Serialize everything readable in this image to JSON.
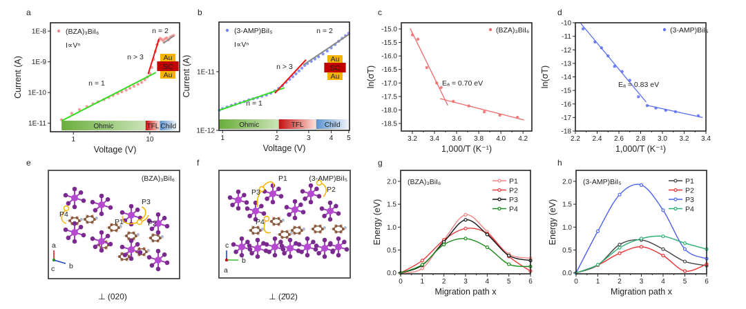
{
  "panel_labels": {
    "a": "a",
    "b": "b",
    "c": "c",
    "d": "d",
    "e": "e",
    "f": "f",
    "g": "g",
    "h": "h"
  },
  "structures": [
    {
      "panel": "e",
      "compound": "(BZA)₃BiI₆",
      "paths": [
        "P1",
        "P2",
        "P3",
        "P4"
      ],
      "axes": [
        "a",
        "b",
        "c"
      ],
      "caption": "⊥ (020)"
    },
    {
      "panel": "f",
      "compound": "(3-AMP)BiI₅",
      "paths": [
        "P1",
        "P2",
        "P3",
        "P4"
      ],
      "axes": [
        "c",
        "b",
        "a"
      ],
      "caption": "⊥ (2̄02)"
    }
  ],
  "chart_data": [
    {
      "panel": "a",
      "type": "scatter",
      "xscale": "log",
      "yscale": "log",
      "xlim": [
        0.5,
        24.5
      ],
      "ylim": [
        5.3e-12,
        1.87e-08
      ],
      "xlabel": "Voltage (V)",
      "ylabel": "Current (A)",
      "xticks": [
        1,
        10
      ],
      "xticklabels": [
        "1",
        "10"
      ],
      "yticks": [
        1e-11,
        1e-10,
        1e-09,
        1e-08
      ],
      "yticklabels": [
        "1E-11",
        "1E-10",
        "1E-9",
        "1E-8"
      ],
      "legend_position": "top-left",
      "formula": "I∝Vⁿ",
      "series": [
        {
          "name": "(BZA)₃BiI₆",
          "color": "#f28b8b",
          "x": [
            0.7,
            0.95,
            1.2,
            1.5,
            1.8,
            2.1,
            2.5,
            2.9,
            3.3,
            3.8,
            4.3,
            4.9,
            5.5,
            6.2,
            7,
            7.8,
            8.6,
            9.3,
            10,
            10.6,
            11.2,
            11.8,
            12.4,
            13,
            13.6,
            14.3,
            15,
            15.8,
            16.6,
            17.5,
            18.5,
            19.5,
            20.5
          ],
          "y": [
            1.3e-11,
            2.1e-11,
            2.8e-11,
            3.5e-11,
            4.3e-11,
            5e-11,
            5.9e-11,
            6.9e-11,
            8e-11,
            9.3e-11,
            1.06e-10,
            1.2e-10,
            1.38e-10,
            1.6e-10,
            1.85e-10,
            2.15e-10,
            2.6e-10,
            3.2e-10,
            4.2e-10,
            6.5e-10,
            1.2e-09,
            2.2e-09,
            3.6e-09,
            4.8e-09,
            5.8e-09,
            5.4e-09,
            4.8e-09,
            5.6e-09,
            6e-09,
            5.2e-09,
            6.3e-09,
            6.8e-09,
            7.2e-09
          ]
        }
      ],
      "fits": [
        {
          "label": "n = 1",
          "color": "#33dd22",
          "x": [
            0.7,
            12
          ],
          "y": [
            1.2e-11,
            4.5e-10
          ]
        },
        {
          "label": "n > 3",
          "color": "#ee1111",
          "x": [
            9.5,
            13.2
          ],
          "y": [
            4e-10,
            5.6e-09
          ]
        },
        {
          "label": "n = 2",
          "color": "#8a8a8a",
          "x": [
            15,
            20.5
          ],
          "y": [
            4e-09,
            7e-09
          ]
        }
      ],
      "regions": [
        {
          "label": "Ohmic",
          "from": 0.7,
          "to": 8.8,
          "color": "#6aae3c"
        },
        {
          "label": "TFL",
          "from": 8.8,
          "to": 13.5,
          "color": "#c41010"
        },
        {
          "label": "Child",
          "from": 13.5,
          "to": 22,
          "color": "#5b93cf"
        }
      ],
      "inset": {
        "layers": [
          "Au",
          "SC",
          "Au"
        ]
      }
    },
    {
      "panel": "b",
      "type": "scatter",
      "xscale": "log",
      "yscale": "log",
      "xlim": [
        0.955,
        5.05
      ],
      "ylim": [
        1e-12,
        7e-11
      ],
      "xlabel": "Voltage (V)",
      "ylabel": "Current (A)",
      "xticks": [
        1,
        2,
        3,
        4,
        5
      ],
      "xticklabels": [
        "1",
        "2",
        "3",
        "4",
        "5"
      ],
      "yticks": [
        1e-12,
        1e-11
      ],
      "yticklabels": [
        "1E-12",
        "1E-11"
      ],
      "legend_position": "top-left",
      "formula": "I∝Vⁿ",
      "series": [
        {
          "name": "(3-AMP)BiI₅",
          "color": "#7283f2",
          "x": [
            0.96,
            1.0,
            1.06,
            1.12,
            1.18,
            1.25,
            1.32,
            1.4,
            1.48,
            1.56,
            1.65,
            1.75,
            1.85,
            1.95,
            2.05,
            2.15,
            2.25,
            2.35,
            2.45,
            2.55,
            2.65,
            2.75,
            2.85,
            2.95,
            3.1,
            3.25,
            3.4,
            3.6,
            3.8,
            4.0,
            4.2,
            4.4,
            4.6,
            4.8,
            5.0
          ],
          "y": [
            2.2e-12,
            2.35e-12,
            2.5e-12,
            2.65e-12,
            2.8e-12,
            2.95e-12,
            3.1e-12,
            3.3e-12,
            3.45e-12,
            3.6e-12,
            3.8e-12,
            4e-12,
            4.3e-12,
            4.7e-12,
            5.2e-12,
            5.8e-12,
            6.6e-12,
            7.4e-12,
            8.2e-12,
            9.2e-12,
            1.03e-11,
            1.15e-11,
            1.28e-11,
            1.38e-11,
            1.5e-11,
            1.65e-11,
            1.8e-11,
            2e-11,
            2.25e-11,
            2.55e-11,
            2.9e-11,
            3.3e-11,
            3.7e-11,
            4.1e-11,
            4.5e-11
          ]
        }
      ],
      "fits": [
        {
          "label": "n = 1",
          "color": "#33dd22",
          "x": [
            0.96,
            2.2
          ],
          "y": [
            2.2e-12,
            5.3e-12
          ]
        },
        {
          "label": "n > 3",
          "color": "#ee1111",
          "x": [
            1.95,
            2.9
          ],
          "y": [
            4.3e-12,
            1.6e-11
          ]
        },
        {
          "label": "n = 2",
          "color": "#8a8a8a",
          "x": [
            2.8,
            5.0
          ],
          "y": [
            1.3e-11,
            4.3e-11
          ]
        }
      ],
      "regions": [
        {
          "label": "Ohmic",
          "from": 0.96,
          "to": 2.05,
          "color": "#6aae3c"
        },
        {
          "label": "TFL",
          "from": 2.05,
          "to": 3.3,
          "color": "#c41010"
        },
        {
          "label": "Child",
          "from": 3.3,
          "to": 5.0,
          "color": "#5b93cf"
        }
      ],
      "inset": {
        "layers": [
          "Au",
          "SC",
          "Au"
        ]
      }
    },
    {
      "panel": "c",
      "type": "scatter",
      "xscale": "linear",
      "yscale": "linear",
      "xlim": [
        3.1,
        4.28
      ],
      "ylim": [
        -18.78,
        -14.77
      ],
      "xlabel": "1,000/T (K⁻¹)",
      "ylabel": "ln(σT)",
      "xticks": [
        3.2,
        3.4,
        3.6,
        3.8,
        4.0,
        4.2
      ],
      "xticklabels": [
        "3.2",
        "3.4",
        "3.6",
        "3.8",
        "4.0",
        "4.2"
      ],
      "yticks": [
        -15,
        -15.5,
        -16,
        -16.5,
        -17,
        -17.5,
        -18,
        -18.5
      ],
      "yticklabels": [
        "-15.0",
        "-15.5",
        "-16.0",
        "-16.5",
        "-17.0",
        "-17.5",
        "-18.0",
        "-18.5"
      ],
      "legend_position": "top-right",
      "annotation": "Eₐ = 0.70 eV",
      "series": [
        {
          "name": "(BZA)₃BiI₆",
          "color": "#f06a6a",
          "x": [
            3.2,
            3.25,
            3.33,
            3.42,
            3.46,
            3.57,
            3.71,
            3.85,
            3.99,
            4.15
          ],
          "y": [
            -15.22,
            -15.38,
            -16.43,
            -17.0,
            -17.17,
            -17.68,
            -17.85,
            -18.07,
            -18.19,
            -18.27
          ]
        }
      ],
      "fits": [
        {
          "color": "#f06a6a",
          "x": [
            3.18,
            3.52
          ],
          "y": [
            -14.98,
            -17.83
          ]
        },
        {
          "color": "#f06a6a",
          "x": [
            3.45,
            4.21
          ],
          "y": [
            -17.58,
            -18.37
          ]
        }
      ]
    },
    {
      "panel": "d",
      "type": "scatter",
      "xscale": "linear",
      "yscale": "linear",
      "xlim": [
        2.2,
        3.4
      ],
      "ylim": [
        -18,
        -10
      ],
      "xlabel": "1,000/T (K⁻¹)",
      "ylabel": "ln(σT)",
      "xticks": [
        2.2,
        2.4,
        2.6,
        2.8,
        3.0,
        3.2,
        3.4
      ],
      "xticklabels": [
        "2.2",
        "2.4",
        "2.6",
        "2.8",
        "3.0",
        "3.2",
        "3.4"
      ],
      "yticks": [
        -10,
        -11,
        -12,
        -13,
        -14,
        -15,
        -16,
        -17,
        -18
      ],
      "yticklabels": [
        "-10",
        "-11",
        "-12",
        "-13",
        "-14",
        "-15",
        "-16",
        "-17",
        "-18"
      ],
      "legend_position": "top-right",
      "annotation": "Eₐ = 0.83 eV",
      "series": [
        {
          "name": "(3-AMP)BiI₅",
          "color": "#5b6ff0",
          "x": [
            2.27,
            2.38,
            2.44,
            2.5,
            2.56,
            2.63,
            2.7,
            2.78,
            2.86,
            2.94,
            3.03,
            3.12,
            3.33
          ],
          "y": [
            -10.45,
            -11.42,
            -11.85,
            -12.45,
            -13.22,
            -13.6,
            -14.25,
            -15.47,
            -16.12,
            -16.3,
            -16.47,
            -16.57,
            -16.87
          ]
        }
      ],
      "fits": [
        {
          "color": "#5b6ff0",
          "x": [
            2.25,
            2.85
          ],
          "y": [
            -10.05,
            -15.85
          ]
        },
        {
          "color": "#5b6ff0",
          "x": [
            2.86,
            3.37
          ],
          "y": [
            -16.1,
            -17.0
          ]
        }
      ]
    },
    {
      "panel": "g",
      "type": "line",
      "xscale": "linear",
      "yscale": "linear",
      "xlim": [
        0,
        6
      ],
      "ylim": [
        -0.02,
        2.24
      ],
      "xlabel": "Migration path x",
      "ylabel": "Energy (eV)",
      "xticks": [
        0,
        1,
        2,
        3,
        4,
        5,
        6
      ],
      "xticklabels": [
        "0",
        "1",
        "2",
        "3",
        "4",
        "5",
        "6"
      ],
      "yticks": [
        0,
        0.5,
        1,
        1.5,
        2
      ],
      "yticklabels": [
        "0.0",
        "0.5",
        "1.0",
        "1.5",
        "2.0"
      ],
      "title": "(BZA)₃BiI₆",
      "legend_position": "top-right",
      "x": [
        0,
        1,
        2,
        3,
        4,
        5,
        6
      ],
      "series": [
        {
          "name": "P1",
          "color": "#f48484",
          "values": [
            0,
            0.1,
            0.72,
            1.27,
            0.9,
            0.41,
            0.32
          ]
        },
        {
          "name": "P2",
          "color": "#e83a3a",
          "values": [
            0,
            0.27,
            0.72,
            0.97,
            0.86,
            0.36,
            0.04
          ]
        },
        {
          "name": "P3",
          "color": "#111111",
          "values": [
            0,
            0.17,
            0.68,
            1.16,
            0.84,
            0.38,
            0.27
          ]
        },
        {
          "name": "P4",
          "color": "#1a8a1a",
          "values": [
            0,
            0.18,
            0.62,
            0.75,
            0.56,
            0.19,
            0.14
          ]
        }
      ]
    },
    {
      "panel": "h",
      "type": "line",
      "xscale": "linear",
      "yscale": "linear",
      "xlim": [
        0,
        6
      ],
      "ylim": [
        -0.02,
        2.24
      ],
      "xlabel": "Migration path x",
      "ylabel": "Energy (eV)",
      "xticks": [
        0,
        1,
        2,
        3,
        4,
        5,
        6
      ],
      "xticklabels": [
        "0",
        "1",
        "2",
        "3",
        "4",
        "5",
        "6"
      ],
      "yticks": [
        0,
        0.5,
        1,
        1.5,
        2
      ],
      "yticklabels": [
        "0.0",
        "0.5",
        "1.0",
        "1.5",
        "2.0"
      ],
      "title": "(3-AMP)BiI₅",
      "legend_position": "top-right",
      "x": [
        0,
        1,
        2,
        3,
        4,
        5,
        6
      ],
      "series": [
        {
          "name": "P1",
          "color": "#444444",
          "values": [
            0,
            0.17,
            0.62,
            0.72,
            0.52,
            0.25,
            0.16
          ]
        },
        {
          "name": "P2",
          "color": "#e83030",
          "values": [
            0,
            0.17,
            0.43,
            0.57,
            0.38,
            0.04,
            0.19
          ]
        },
        {
          "name": "P3",
          "color": "#4a60f0",
          "values": [
            0,
            0.91,
            1.71,
            1.92,
            1.37,
            0.52,
            0.31
          ]
        },
        {
          "name": "P4",
          "color": "#2ab070",
          "values": [
            0,
            0.18,
            0.55,
            0.75,
            0.8,
            0.65,
            0.52
          ]
        }
      ]
    }
  ]
}
